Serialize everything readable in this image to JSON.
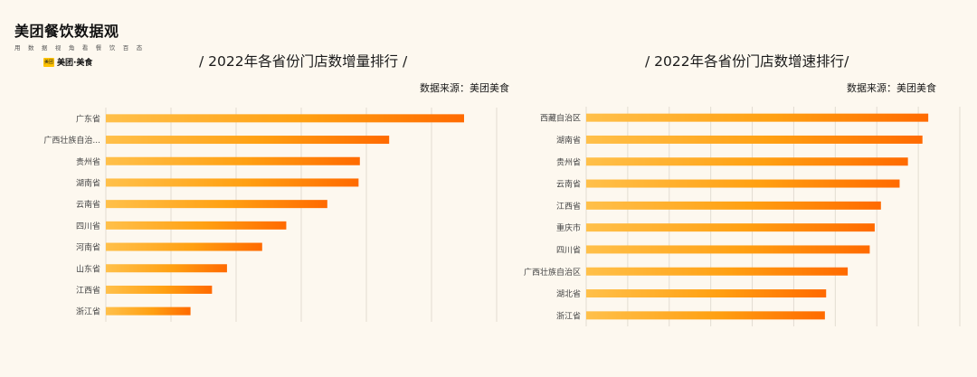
{
  "brand": {
    "title": "美团餐饮数据观",
    "subtitle": "用 数 据 视 角 看 餐 饮 百 态",
    "logo_badge": "美团",
    "logo_name": "美团·美食"
  },
  "colors": {
    "bar_start": "#ffc04a",
    "bar_mid": "#ffa012",
    "bar_end": "#ff6a00",
    "grid": "#e3ddd2",
    "background": "#fdf8ef"
  },
  "chart_data": [
    {
      "type": "bar",
      "orientation": "horizontal",
      "title": "/ 2022年各省份门店数增量排行 /",
      "source": "数据来源：美团美食",
      "categories": [
        "广东省",
        "广西壮族自治...",
        "贵州省",
        "湖南省",
        "云南省",
        "四川省",
        "河南省",
        "山东省",
        "江西省",
        "浙江省"
      ],
      "values": [
        5.5,
        4.35,
        3.9,
        3.88,
        3.4,
        2.77,
        2.4,
        1.86,
        1.63,
        1.3
      ],
      "xlim": [
        0,
        6
      ],
      "grid": true,
      "tick_labels_visible": false
    },
    {
      "type": "bar",
      "orientation": "horizontal",
      "title": "/ 2022年各省份门店数增速排行/",
      "source": "数据来源：美团美食",
      "categories": [
        "西藏自治区",
        "湖南省",
        "贵州省",
        "云南省",
        "江西省",
        "重庆市",
        "四川省",
        "广西壮族自治区",
        "湖北省",
        "浙江省"
      ],
      "values": [
        8.24,
        8.1,
        7.75,
        7.55,
        7.1,
        6.95,
        6.83,
        6.3,
        5.78,
        5.75
      ],
      "xlim": [
        0,
        9
      ],
      "grid": true,
      "tick_labels_visible": false
    }
  ]
}
